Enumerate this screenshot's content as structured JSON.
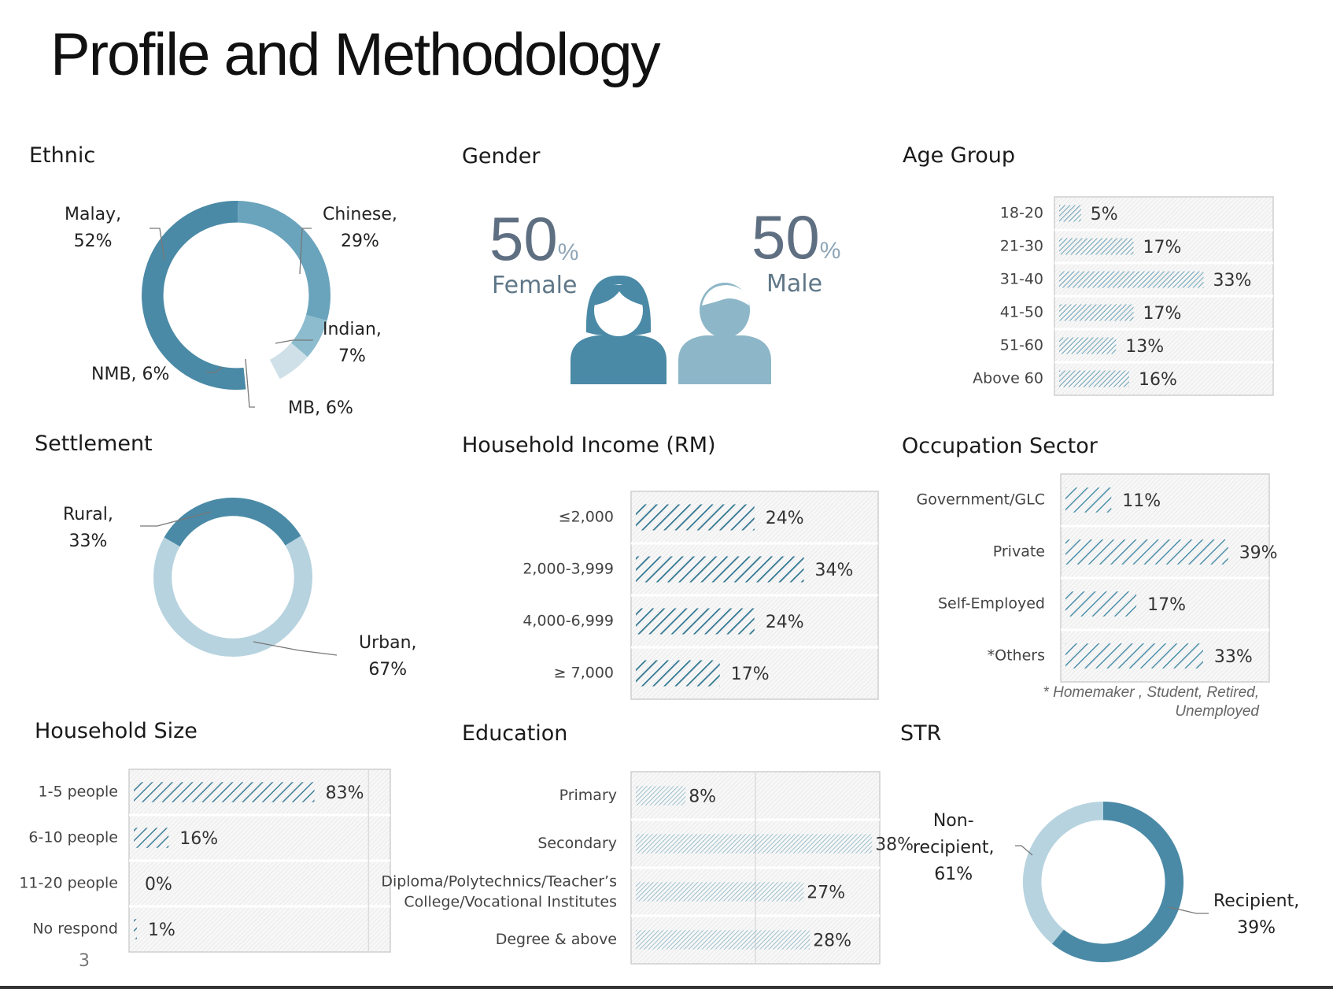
{
  "page": {
    "title": "Profile and Methodology",
    "page_number": "3",
    "footnote_line1": "* Homemaker , Student, Retired,",
    "footnote_line2": "Unemployed"
  },
  "colors": {
    "dark": "#4a8aa6",
    "medium": "#6aa4bc",
    "light": "#b7d3df",
    "lighter": "#cfe0e8",
    "female": "#4a8aa6",
    "male": "#8db7c8"
  },
  "gender": {
    "title": "Gender",
    "female_value": "50",
    "female_pct": "%",
    "female_label": "Female",
    "male_value": "50",
    "male_pct": "%",
    "male_label": "Male"
  },
  "chart_data": [
    {
      "id": "ethnic",
      "type": "pie",
      "title": "Ethnic",
      "categories": [
        "Malay",
        "Chinese",
        "Indian",
        "MB",
        "NMB"
      ],
      "values": [
        52,
        29,
        7,
        6,
        6
      ],
      "labels": [
        [
          "Malay,",
          "52%"
        ],
        [
          "Chinese,",
          "29%"
        ],
        [
          "Indian,",
          "7%"
        ],
        [
          "MB, 6%"
        ],
        [
          "NMB, 6%"
        ]
      ]
    },
    {
      "id": "settlement",
      "type": "pie",
      "title": "Settlement",
      "categories": [
        "Rural",
        "Urban"
      ],
      "values": [
        33,
        67
      ],
      "labels": [
        [
          "Rural,",
          "33%"
        ],
        [
          "Urban,",
          "67%"
        ]
      ]
    },
    {
      "id": "str",
      "type": "pie",
      "title": "STR",
      "categories": [
        "Non-recipient",
        "Recipient"
      ],
      "values": [
        61,
        39
      ],
      "labels": [
        [
          "Non-",
          "recipient,",
          "61%"
        ],
        [
          "Recipient,",
          "39%"
        ]
      ]
    },
    {
      "id": "age",
      "type": "bar",
      "orientation": "horizontal",
      "title": "Age Group",
      "categories": [
        "18-20",
        "21-30",
        "31-40",
        "41-50",
        "51-60",
        "Above 60"
      ],
      "values": [
        5,
        17,
        33,
        17,
        13,
        16
      ],
      "value_labels": [
        "5%",
        "17%",
        "33%",
        "17%",
        "13%",
        "16%"
      ],
      "xlim": [
        0,
        50
      ]
    },
    {
      "id": "income",
      "type": "bar",
      "orientation": "horizontal",
      "title": "Household Income (RM)",
      "categories": [
        "≤2,000",
        "2,000-3,999",
        "4,000-6,999",
        "≥ 7,000"
      ],
      "values": [
        24,
        34,
        24,
        17
      ],
      "value_labels": [
        "24%",
        "34%",
        "24%",
        "17%"
      ],
      "xlim": [
        0,
        50
      ]
    },
    {
      "id": "occupation",
      "type": "bar",
      "orientation": "horizontal",
      "title": "Occupation Sector",
      "categories": [
        "Government/GLC",
        "Private",
        "Self-Employed",
        "*Others"
      ],
      "values": [
        11,
        39,
        17,
        33
      ],
      "value_labels": [
        "11%",
        "39%",
        "17%",
        "33%"
      ],
      "xlim": [
        0,
        50
      ]
    },
    {
      "id": "hhsize",
      "type": "bar",
      "orientation": "horizontal",
      "title": "Household Size",
      "categories": [
        "1-5 people",
        "6-10 people",
        "11-20 people",
        "No respond"
      ],
      "values": [
        83,
        16,
        0,
        1
      ],
      "value_labels": [
        "83%",
        "16%",
        "0%",
        "1%"
      ],
      "xlim": [
        0,
        120
      ]
    },
    {
      "id": "education",
      "type": "bar",
      "orientation": "horizontal",
      "title": "Education",
      "categories": [
        [
          "Primary"
        ],
        [
          "Secondary"
        ],
        [
          "Diploma/Polytechnics/Teacher’s",
          "College/Vocational Institutes"
        ],
        [
          "Degree & above"
        ]
      ],
      "values": [
        8,
        38,
        27,
        28
      ],
      "value_labels": [
        "8%",
        "38%",
        "27%",
        "28%"
      ],
      "xlim": [
        0,
        40
      ]
    }
  ]
}
